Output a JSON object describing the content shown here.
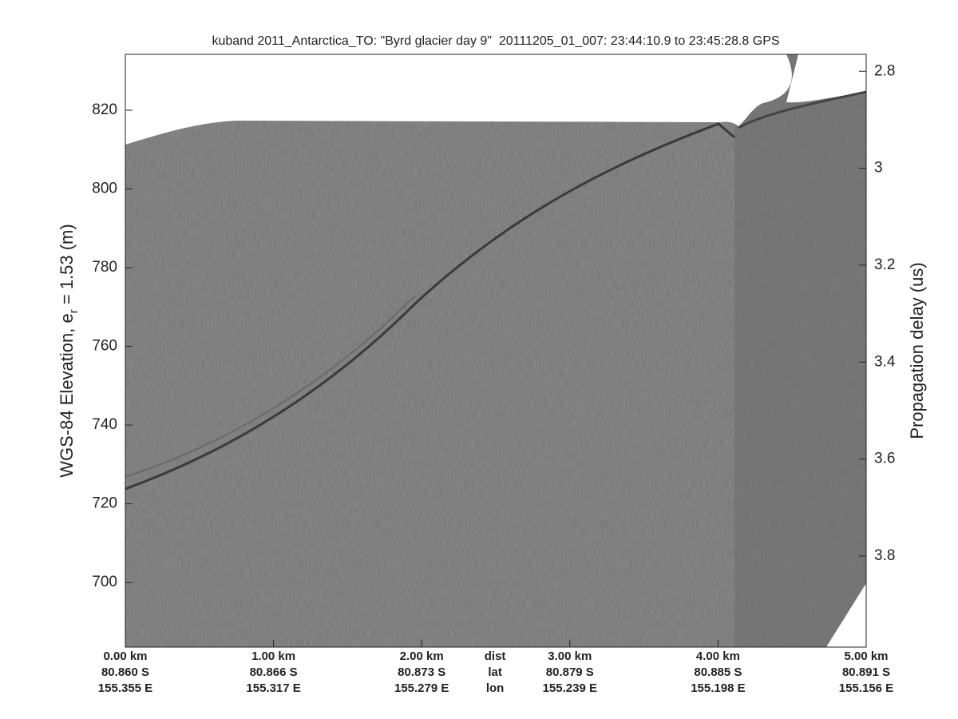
{
  "chart_data": {
    "type": "echogram",
    "title": "kuband 2011_Antarctica_TO: \"Byrd glacier day 9\"  20111205_01_007: 23:44:10.9 to 23:45:28.8 GPS",
    "ylabel_parts": [
      {
        "text": "WGS-84 Elevation, e"
      },
      {
        "text": "r",
        "sub": true
      },
      {
        "text": " = 1.53 (m)"
      }
    ],
    "y2label": "Propagation delay (us)",
    "xlim": [
      0,
      5.0
    ],
    "xticks": [
      {
        "value": 0,
        "label": "0.00 km"
      },
      {
        "value": 1,
        "label": "1.00 km"
      },
      {
        "value": 2,
        "label": "2.00 km"
      },
      {
        "value": 3,
        "label": "3.00 km"
      },
      {
        "value": 4,
        "label": "4.00 km"
      },
      {
        "value": 5,
        "label": "5.00 km"
      }
    ],
    "lat_labels": [
      "80.860 S",
      "80.866 S",
      "80.873 S",
      "80.879 S",
      "80.885 S",
      "80.891 S"
    ],
    "lon_labels": [
      "155.355 E",
      "155.317 E",
      "155.279 E",
      "155.239 E",
      "155.198 E",
      "155.156 E"
    ],
    "row_labels": [
      "dist",
      "lat",
      "lon"
    ],
    "ylim": [
      683.6,
      834.2
    ],
    "yticks": [
      700,
      720,
      740,
      760,
      780,
      800,
      820
    ],
    "y2lim": [
      3.988,
      2.765
    ],
    "y2ticks": [
      {
        "value": 2.8,
        "label": "2.8"
      },
      3,
      {
        "value": 3.2,
        "label": "3.2"
      },
      {
        "value": 3.4,
        "label": "3.4"
      },
      {
        "value": 3.6,
        "label": "3.6"
      },
      {
        "value": 3.8,
        "label": "3.8"
      }
    ]
  }
}
